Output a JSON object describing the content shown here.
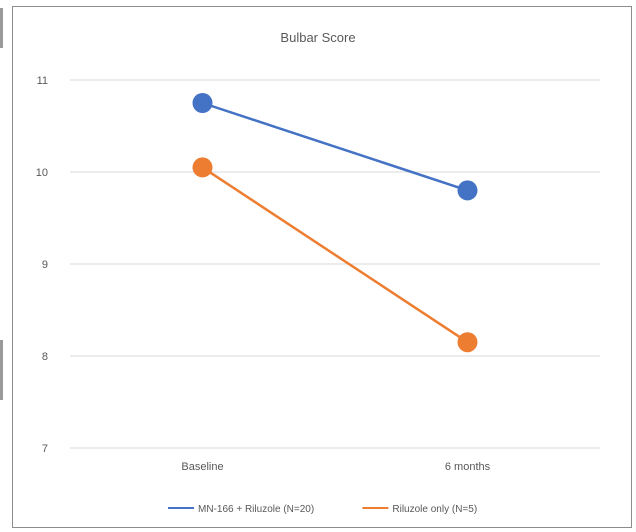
{
  "chart_data": {
    "type": "line",
    "title": "Bulbar Score",
    "categories": [
      "Baseline",
      "6 months"
    ],
    "yticks": [
      7,
      8,
      9,
      10,
      11
    ],
    "ylim": [
      7,
      11
    ],
    "grid": true,
    "legend_position": "bottom",
    "series": [
      {
        "name": "MN-166 + Riluzole (N=20)",
        "values": [
          10.75,
          9.8
        ],
        "color": "#4472c4"
      },
      {
        "name": "Riluzole only (N=5)",
        "values": [
          10.05,
          8.15
        ],
        "color": "#ed7d31"
      }
    ]
  }
}
